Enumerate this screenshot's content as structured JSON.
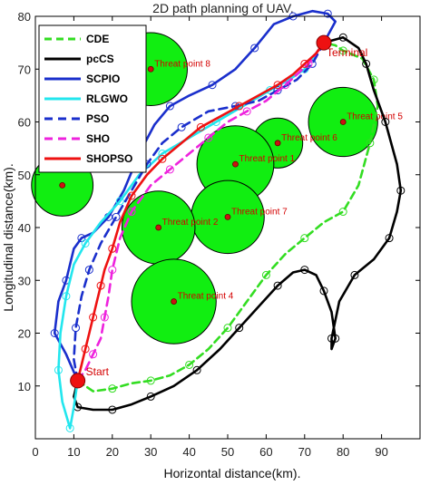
{
  "chart_data": {
    "type": "line",
    "title": "2D path planning of UAV.",
    "xlabel": "Horizontal distance(km).",
    "ylabel": "Longitudinal distance(km).",
    "xlim": [
      0,
      100
    ],
    "ylim": [
      0,
      80
    ],
    "xticks": [
      0,
      10,
      20,
      30,
      40,
      50,
      60,
      70,
      80,
      90
    ],
    "yticks": [
      10,
      20,
      30,
      40,
      50,
      60,
      70,
      80
    ],
    "legend_position": "top-left",
    "start": {
      "label": "Start",
      "x": 11,
      "y": 11
    },
    "terminal": {
      "label": "Terminal",
      "x": 75,
      "y": 75
    },
    "threats": [
      {
        "name": "Threat point 8",
        "x": 30,
        "y": 70,
        "r": 9.5
      },
      {
        "name": "Threat point 5",
        "x": 80,
        "y": 60,
        "r": 9
      },
      {
        "name": "Threat point 6",
        "x": 63,
        "y": 56,
        "r": 6.5
      },
      {
        "name": "Threat point 1",
        "x": 52,
        "y": 52,
        "r": 10
      },
      {
        "name": "",
        "x": 7,
        "y": 48,
        "r": 8
      },
      {
        "name": "Threat point 7",
        "x": 50,
        "y": 42,
        "r": 9.5
      },
      {
        "name": "Threat point 2",
        "x": 32,
        "y": 40,
        "r": 9.5
      },
      {
        "name": "Threat point 4",
        "x": 36,
        "y": 26,
        "r": 11
      }
    ],
    "series": [
      {
        "name": "CDE",
        "color": "#33dd22",
        "dash": "8,5",
        "x": [
          11,
          15,
          20,
          25,
          30,
          35,
          40,
          45,
          50,
          55,
          60,
          65,
          70,
          75,
          80,
          84,
          87,
          89,
          88,
          85,
          80,
          78,
          75
        ],
        "y": [
          11,
          9,
          9.5,
          10.5,
          11,
          12,
          14,
          17,
          21,
          26,
          31,
          35,
          38,
          41,
          43,
          48,
          56,
          63,
          68,
          72,
          73.5,
          74.5,
          75
        ]
      },
      {
        "name": "pcCS",
        "color": "#000000",
        "dash": "",
        "x": [
          11,
          10,
          11,
          15,
          20,
          25,
          30,
          36,
          42,
          48,
          53,
          58,
          63,
          67,
          70,
          73,
          75,
          77,
          78,
          77,
          77,
          79,
          83,
          88,
          92,
          94,
          95,
          94,
          91,
          88,
          86,
          84,
          80,
          75
        ],
        "y": [
          11,
          8,
          6,
          5.5,
          5.5,
          6.5,
          8,
          10,
          13,
          17,
          21,
          25,
          29,
          31.5,
          32,
          31,
          28,
          24,
          19,
          17,
          19,
          26,
          31,
          34,
          38,
          43,
          47,
          52,
          60,
          66,
          71,
          74,
          76,
          75
        ]
      },
      {
        "name": "SCPIO",
        "color": "#1a2fcc",
        "dash": "",
        "x": [
          11,
          8,
          5,
          6,
          8,
          10,
          12,
          15,
          19,
          23,
          27,
          31,
          35,
          40,
          46,
          52,
          57,
          62,
          67,
          72,
          76,
          78,
          75
        ],
        "y": [
          11,
          16,
          20,
          26,
          30,
          36,
          38,
          39,
          42,
          47,
          54,
          59.5,
          63,
          65,
          67,
          70,
          74,
          78.5,
          80,
          81,
          80.5,
          79,
          75
        ]
      },
      {
        "name": "RLGWO",
        "color": "#22e6ee",
        "dash": "",
        "x": [
          11,
          10,
          9,
          7,
          6,
          6.5,
          8,
          10,
          13,
          17,
          22,
          27,
          33,
          40,
          47,
          54,
          61,
          66,
          70,
          73,
          75
        ],
        "y": [
          11,
          6,
          2,
          7,
          13,
          20,
          27,
          33,
          37,
          41,
          45,
          50,
          54,
          57,
          60,
          63,
          66,
          68,
          70,
          73,
          75
        ]
      },
      {
        "name": "PSO",
        "color": "#1a2fcc",
        "dash": "9,6",
        "x": [
          11,
          10,
          10.5,
          12,
          14,
          17,
          21,
          25,
          29,
          33,
          38,
          45,
          52,
          58,
          63,
          68,
          72,
          75
        ],
        "y": [
          11,
          15,
          21,
          27,
          32,
          37,
          42,
          47,
          52,
          56,
          59,
          62,
          63,
          64,
          66,
          68,
          71,
          75
        ]
      },
      {
        "name": "SHO",
        "color": "#ee22dd",
        "dash": "9,6",
        "x": [
          11,
          13,
          15,
          17,
          18,
          19,
          20,
          22,
          25,
          30,
          35,
          40,
          45,
          50,
          55,
          60,
          65,
          68,
          71,
          73,
          75
        ],
        "y": [
          11,
          13,
          16,
          19,
          23,
          27,
          32,
          38,
          43,
          48,
          51,
          54,
          57,
          60,
          62,
          64,
          67,
          69,
          71,
          73,
          75
        ]
      },
      {
        "name": "SHOPSO",
        "color": "#ee1111",
        "dash": "",
        "x": [
          11,
          12,
          13,
          14,
          15,
          16,
          17,
          18,
          20,
          22,
          25,
          29,
          33,
          38,
          43,
          48,
          53,
          58,
          63,
          67,
          70,
          73,
          75
        ],
        "y": [
          11,
          14,
          17,
          20,
          23,
          26,
          29,
          32,
          36,
          41,
          46,
          50,
          53,
          56,
          59,
          61,
          63,
          65,
          67,
          69,
          71,
          73,
          75
        ]
      }
    ]
  }
}
